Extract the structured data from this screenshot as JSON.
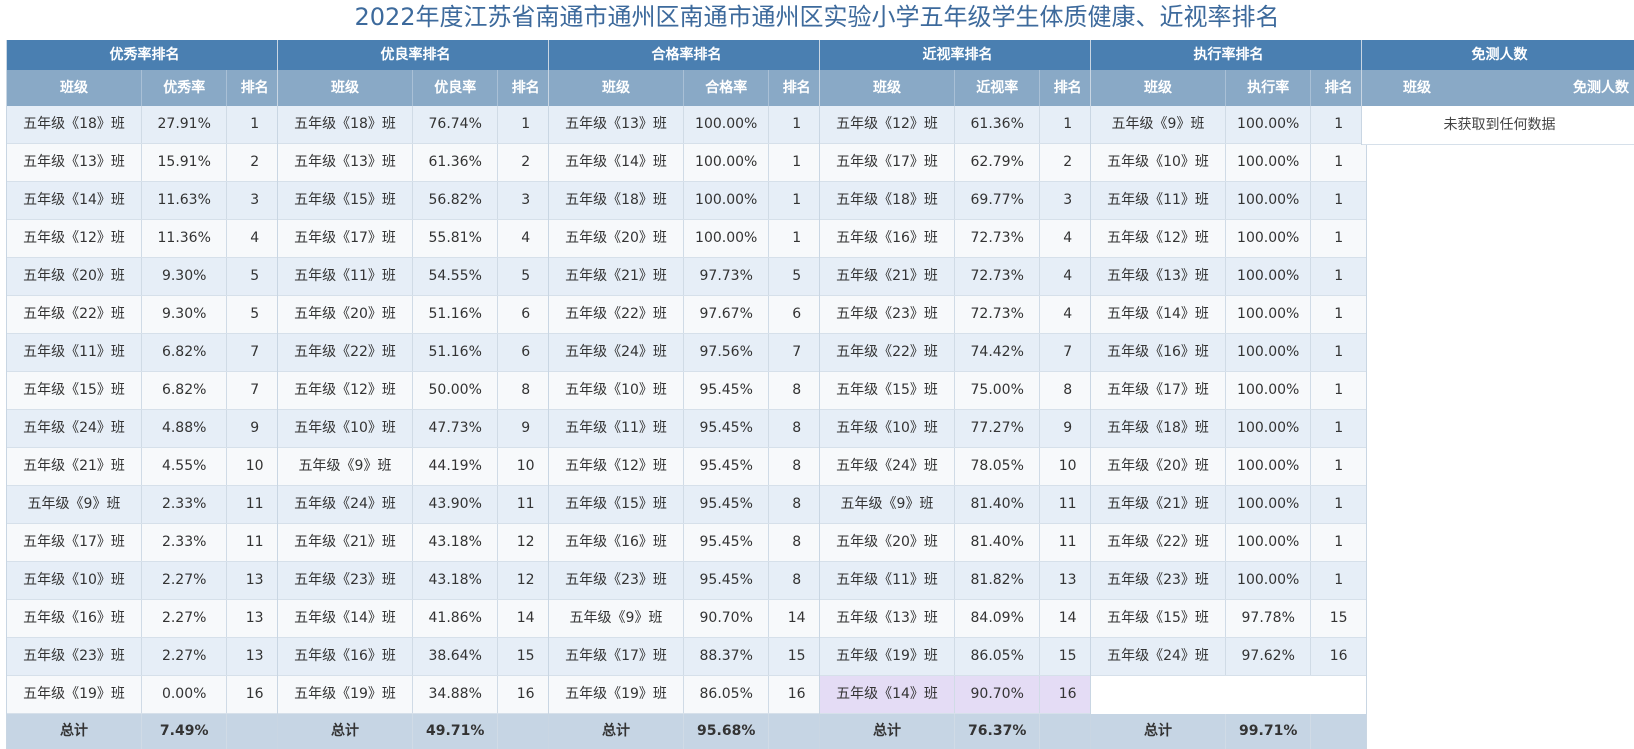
{
  "page": {
    "title": "2022年度江苏省南通市通州区南通市通州区实验小学五年级学生体质健康、近视率排名"
  },
  "panels": [
    {
      "title": "优秀率排名",
      "headers": [
        "班级",
        "优秀率",
        "排名"
      ],
      "rows": [
        {
          "class": "五年级《18》班",
          "rate": "27.91%",
          "rank": "1"
        },
        {
          "class": "五年级《13》班",
          "rate": "15.91%",
          "rank": "2"
        },
        {
          "class": "五年级《14》班",
          "rate": "11.63%",
          "rank": "3"
        },
        {
          "class": "五年级《12》班",
          "rate": "11.36%",
          "rank": "4"
        },
        {
          "class": "五年级《20》班",
          "rate": "9.30%",
          "rank": "5"
        },
        {
          "class": "五年级《22》班",
          "rate": "9.30%",
          "rank": "5"
        },
        {
          "class": "五年级《11》班",
          "rate": "6.82%",
          "rank": "7"
        },
        {
          "class": "五年级《15》班",
          "rate": "6.82%",
          "rank": "7"
        },
        {
          "class": "五年级《24》班",
          "rate": "4.88%",
          "rank": "9"
        },
        {
          "class": "五年级《21》班",
          "rate": "4.55%",
          "rank": "10"
        },
        {
          "class": "五年级《9》班",
          "rate": "2.33%",
          "rank": "11"
        },
        {
          "class": "五年级《17》班",
          "rate": "2.33%",
          "rank": "11"
        },
        {
          "class": "五年级《10》班",
          "rate": "2.27%",
          "rank": "13"
        },
        {
          "class": "五年级《16》班",
          "rate": "2.27%",
          "rank": "13"
        },
        {
          "class": "五年级《23》班",
          "rate": "2.27%",
          "rank": "13"
        },
        {
          "class": "五年级《19》班",
          "rate": "0.00%",
          "rank": "16"
        }
      ],
      "total_label": "总计",
      "total_value": "7.49%"
    },
    {
      "title": "优良率排名",
      "headers": [
        "班级",
        "优良率",
        "排名"
      ],
      "rows": [
        {
          "class": "五年级《18》班",
          "rate": "76.74%",
          "rank": "1"
        },
        {
          "class": "五年级《13》班",
          "rate": "61.36%",
          "rank": "2"
        },
        {
          "class": "五年级《15》班",
          "rate": "56.82%",
          "rank": "3"
        },
        {
          "class": "五年级《17》班",
          "rate": "55.81%",
          "rank": "4"
        },
        {
          "class": "五年级《11》班",
          "rate": "54.55%",
          "rank": "5"
        },
        {
          "class": "五年级《20》班",
          "rate": "51.16%",
          "rank": "6"
        },
        {
          "class": "五年级《22》班",
          "rate": "51.16%",
          "rank": "6"
        },
        {
          "class": "五年级《12》班",
          "rate": "50.00%",
          "rank": "8"
        },
        {
          "class": "五年级《10》班",
          "rate": "47.73%",
          "rank": "9"
        },
        {
          "class": "五年级《9》班",
          "rate": "44.19%",
          "rank": "10"
        },
        {
          "class": "五年级《24》班",
          "rate": "43.90%",
          "rank": "11"
        },
        {
          "class": "五年级《21》班",
          "rate": "43.18%",
          "rank": "12"
        },
        {
          "class": "五年级《23》班",
          "rate": "43.18%",
          "rank": "12"
        },
        {
          "class": "五年级《14》班",
          "rate": "41.86%",
          "rank": "14"
        },
        {
          "class": "五年级《16》班",
          "rate": "38.64%",
          "rank": "15"
        },
        {
          "class": "五年级《19》班",
          "rate": "34.88%",
          "rank": "16"
        }
      ],
      "total_label": "总计",
      "total_value": "49.71%"
    },
    {
      "title": "合格率排名",
      "headers": [
        "班级",
        "合格率",
        "排名"
      ],
      "rows": [
        {
          "class": "五年级《13》班",
          "rate": "100.00%",
          "rank": "1"
        },
        {
          "class": "五年级《14》班",
          "rate": "100.00%",
          "rank": "1"
        },
        {
          "class": "五年级《18》班",
          "rate": "100.00%",
          "rank": "1"
        },
        {
          "class": "五年级《20》班",
          "rate": "100.00%",
          "rank": "1"
        },
        {
          "class": "五年级《21》班",
          "rate": "97.73%",
          "rank": "5"
        },
        {
          "class": "五年级《22》班",
          "rate": "97.67%",
          "rank": "6"
        },
        {
          "class": "五年级《24》班",
          "rate": "97.56%",
          "rank": "7"
        },
        {
          "class": "五年级《10》班",
          "rate": "95.45%",
          "rank": "8"
        },
        {
          "class": "五年级《11》班",
          "rate": "95.45%",
          "rank": "8"
        },
        {
          "class": "五年级《12》班",
          "rate": "95.45%",
          "rank": "8"
        },
        {
          "class": "五年级《15》班",
          "rate": "95.45%",
          "rank": "8"
        },
        {
          "class": "五年级《16》班",
          "rate": "95.45%",
          "rank": "8"
        },
        {
          "class": "五年级《23》班",
          "rate": "95.45%",
          "rank": "8"
        },
        {
          "class": "五年级《9》班",
          "rate": "90.70%",
          "rank": "14"
        },
        {
          "class": "五年级《17》班",
          "rate": "88.37%",
          "rank": "15"
        },
        {
          "class": "五年级《19》班",
          "rate": "86.05%",
          "rank": "16"
        }
      ],
      "total_label": "总计",
      "total_value": "95.68%"
    },
    {
      "title": "近视率排名",
      "headers": [
        "班级",
        "近视率",
        "排名"
      ],
      "rows": [
        {
          "class": "五年级《12》班",
          "rate": "61.36%",
          "rank": "1"
        },
        {
          "class": "五年级《17》班",
          "rate": "62.79%",
          "rank": "2"
        },
        {
          "class": "五年级《18》班",
          "rate": "69.77%",
          "rank": "3"
        },
        {
          "class": "五年级《16》班",
          "rate": "72.73%",
          "rank": "4"
        },
        {
          "class": "五年级《21》班",
          "rate": "72.73%",
          "rank": "4"
        },
        {
          "class": "五年级《23》班",
          "rate": "72.73%",
          "rank": "4"
        },
        {
          "class": "五年级《22》班",
          "rate": "74.42%",
          "rank": "7"
        },
        {
          "class": "五年级《15》班",
          "rate": "75.00%",
          "rank": "8"
        },
        {
          "class": "五年级《10》班",
          "rate": "77.27%",
          "rank": "9"
        },
        {
          "class": "五年级《24》班",
          "rate": "78.05%",
          "rank": "10"
        },
        {
          "class": "五年级《9》班",
          "rate": "81.40%",
          "rank": "11"
        },
        {
          "class": "五年级《20》班",
          "rate": "81.40%",
          "rank": "11"
        },
        {
          "class": "五年级《11》班",
          "rate": "81.82%",
          "rank": "13"
        },
        {
          "class": "五年级《13》班",
          "rate": "84.09%",
          "rank": "14"
        },
        {
          "class": "五年级《19》班",
          "rate": "86.05%",
          "rank": "15"
        },
        {
          "class": "五年级《14》班",
          "rate": "90.70%",
          "rank": "16"
        }
      ],
      "total_label": "总计",
      "total_value": "76.37%"
    },
    {
      "title": "执行率排名",
      "headers": [
        "班级",
        "执行率",
        "排名"
      ],
      "rows": [
        {
          "class": "五年级《9》班",
          "rate": "100.00%",
          "rank": "1"
        },
        {
          "class": "五年级《10》班",
          "rate": "100.00%",
          "rank": "1"
        },
        {
          "class": "五年级《11》班",
          "rate": "100.00%",
          "rank": "1"
        },
        {
          "class": "五年级《12》班",
          "rate": "100.00%",
          "rank": "1"
        },
        {
          "class": "五年级《13》班",
          "rate": "100.00%",
          "rank": "1"
        },
        {
          "class": "五年级《14》班",
          "rate": "100.00%",
          "rank": "1"
        },
        {
          "class": "五年级《16》班",
          "rate": "100.00%",
          "rank": "1"
        },
        {
          "class": "五年级《17》班",
          "rate": "100.00%",
          "rank": "1"
        },
        {
          "class": "五年级《18》班",
          "rate": "100.00%",
          "rank": "1"
        },
        {
          "class": "五年级《20》班",
          "rate": "100.00%",
          "rank": "1"
        },
        {
          "class": "五年级《21》班",
          "rate": "100.00%",
          "rank": "1"
        },
        {
          "class": "五年级《22》班",
          "rate": "100.00%",
          "rank": "1"
        },
        {
          "class": "五年级《23》班",
          "rate": "100.00%",
          "rank": "1"
        },
        {
          "class": "五年级《15》班",
          "rate": "97.78%",
          "rank": "15"
        },
        {
          "class": "五年级《24》班",
          "rate": "97.62%",
          "rank": "16"
        }
      ],
      "total_label": "总计",
      "total_value": "99.71%"
    }
  ],
  "exempt": {
    "title": "免测人数",
    "headers": [
      "班级",
      "免测人数"
    ],
    "empty_message": "未获取到任何数据"
  },
  "highlight": {
    "panel": 3,
    "row": 15,
    "color": "#e4dcf5"
  }
}
